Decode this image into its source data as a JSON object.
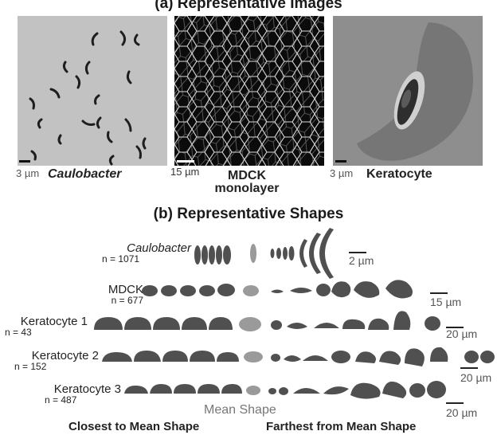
{
  "panel_a": {
    "title": "(a) Representative Images",
    "images": [
      {
        "scale": "3 µm",
        "label": "Caulobacter"
      },
      {
        "scale": "15 µm",
        "label_line1": "MDCK",
        "label_line2": "monolayer"
      },
      {
        "scale": "3 µm",
        "label": "Keratocyte"
      }
    ]
  },
  "panel_b": {
    "title": "(b) Representative Shapes",
    "rows": [
      {
        "name": "Caulobacter",
        "n": "n = 1071",
        "scale": "2 µm"
      },
      {
        "name": "MDCK",
        "n": "n = 677",
        "scale": "15 µm"
      },
      {
        "name": "Keratocyte 1",
        "n": "n = 43",
        "scale": "20 µm"
      },
      {
        "name": "Keratocyte 2",
        "n": "n = 152",
        "scale": "20 µm"
      },
      {
        "name": "Keratocyte 3",
        "n": "n = 487",
        "scale": "20 µm"
      }
    ],
    "mean_label": "Mean Shape",
    "closest_label": "Closest to Mean Shape",
    "farthest_label": "Farthest from Mean Shape"
  },
  "colors": {
    "shape_dark": "#505050",
    "shape_mean": "#9a9a9a",
    "bacteria_bg": "#c4c4c4",
    "mdck_bg": "#0b0b0b",
    "kerato_bg": "#8f8f8f"
  }
}
